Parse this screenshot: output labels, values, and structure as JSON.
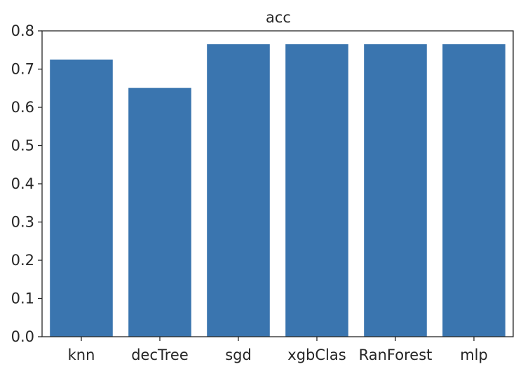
{
  "chart_data": {
    "type": "bar",
    "title": "acc",
    "xlabel": "",
    "ylabel": "",
    "categories": [
      "knn",
      "decTree",
      "sgd",
      "xgbClas",
      "RanForest",
      "mlp"
    ],
    "values": [
      0.725,
      0.651,
      0.765,
      0.765,
      0.765,
      0.765
    ],
    "ylim": [
      0,
      0.8
    ],
    "yticks": [
      "0.0",
      "0.1",
      "0.2",
      "0.3",
      "0.4",
      "0.5",
      "0.6",
      "0.7",
      "0.8"
    ],
    "grid": false,
    "bar_color": "#3a75af",
    "axis_color": "#262626"
  }
}
